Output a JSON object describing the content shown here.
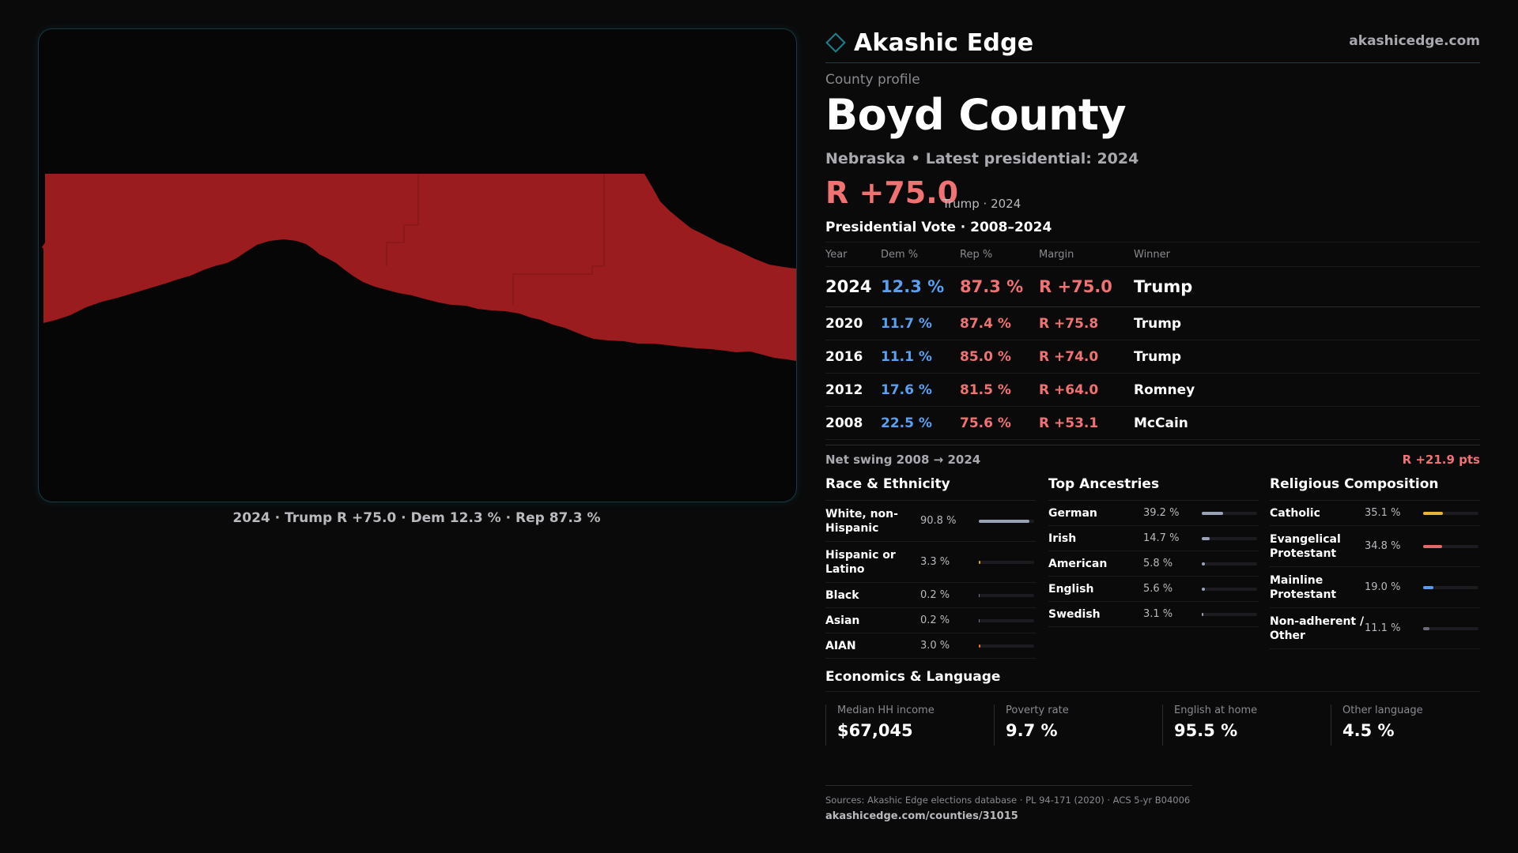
{
  "map": {
    "fill_color": "#9b1c1f",
    "caption": "2024 · Trump R +75.0 · Dem 12.3 % · Rep 87.3 %"
  },
  "brand": {
    "name": "Akashic Edge",
    "url": "akashicedge.com",
    "logo_icon": "diamond-icon",
    "accent": "#1f7f8c"
  },
  "profile": {
    "eyebrow": "County profile",
    "title": "Boyd County",
    "subtitle": "Nebraska • Latest presidential: 2024",
    "headline_margin": "R +75.0",
    "headline_note": "Trump · 2024"
  },
  "vote_table": {
    "title": "Presidential Vote · 2008–2024",
    "headers": [
      "Year",
      "Dem %",
      "Rep %",
      "Margin",
      "Winner"
    ],
    "rows": [
      {
        "year": "2024",
        "dem": "12.3 %",
        "rep": "87.3 %",
        "margin": "R +75.0",
        "winner": "Trump"
      },
      {
        "year": "2020",
        "dem": "11.7 %",
        "rep": "87.4 %",
        "margin": "R +75.8",
        "winner": "Trump"
      },
      {
        "year": "2016",
        "dem": "11.1 %",
        "rep": "85.0 %",
        "margin": "R +74.0",
        "winner": "Trump"
      },
      {
        "year": "2012",
        "dem": "17.6 %",
        "rep": "81.5 %",
        "margin": "R +64.0",
        "winner": "Romney"
      },
      {
        "year": "2008",
        "dem": "22.5 %",
        "rep": "75.6 %",
        "margin": "R +53.1",
        "winner": "McCain"
      }
    ]
  },
  "swing": {
    "label": "Net swing 2008 → 2024",
    "value": "R +21.9 pts"
  },
  "race": {
    "title": "Race & Ethnicity",
    "items": [
      {
        "label": "White, non-Hispanic",
        "value": "90.8 %",
        "pct": 90.8,
        "color": "#9aa3b5"
      },
      {
        "label": "Hispanic or Latino",
        "value": "3.3 %",
        "pct": 3.3,
        "color": "#e8a33a"
      },
      {
        "label": "Black",
        "value": "0.2 %",
        "pct": 0.2,
        "color": "#7c7c84"
      },
      {
        "label": "Asian",
        "value": "0.2 %",
        "pct": 0.2,
        "color": "#7c7c84"
      },
      {
        "label": "AIAN",
        "value": "3.0 %",
        "pct": 3.0,
        "color": "#e07a3a"
      }
    ]
  },
  "ancestry": {
    "title": "Top Ancestries",
    "items": [
      {
        "label": "German",
        "value": "39.2 %",
        "pct": 39.2,
        "color": "#9aa3b5"
      },
      {
        "label": "Irish",
        "value": "14.7 %",
        "pct": 14.7,
        "color": "#9aa3b5"
      },
      {
        "label": "American",
        "value": "5.8 %",
        "pct": 5.8,
        "color": "#9aa3b5"
      },
      {
        "label": "English",
        "value": "5.6 %",
        "pct": 5.6,
        "color": "#9aa3b5"
      },
      {
        "label": "Swedish",
        "value": "3.1 %",
        "pct": 3.1,
        "color": "#9aa3b5"
      }
    ]
  },
  "religion": {
    "title": "Religious Composition",
    "items": [
      {
        "label": "Catholic",
        "value": "35.1 %",
        "pct": 35.1,
        "color": "#e8b33a"
      },
      {
        "label": "Evangelical Protestant",
        "value": "34.8 %",
        "pct": 34.8,
        "color": "#e06a6a"
      },
      {
        "label": "Mainline Protestant",
        "value": "19.0 %",
        "pct": 19.0,
        "color": "#5a9af0"
      },
      {
        "label": "Non-adherent / Other",
        "value": "11.1 %",
        "pct": 11.1,
        "color": "#6c6c74"
      }
    ]
  },
  "economics": {
    "title": "Economics & Language",
    "items": [
      {
        "label": "Median HH income",
        "value": "$67,045"
      },
      {
        "label": "Poverty rate",
        "value": "9.7 %"
      },
      {
        "label": "English at home",
        "value": "95.5 %"
      },
      {
        "label": "Other language",
        "value": "4.5 %"
      }
    ]
  },
  "footer": {
    "sources": "Sources: Akashic Edge elections database · PL 94-171 (2020) · ACS 5-yr B04006",
    "url": "akashicedge.com/counties/31015"
  }
}
